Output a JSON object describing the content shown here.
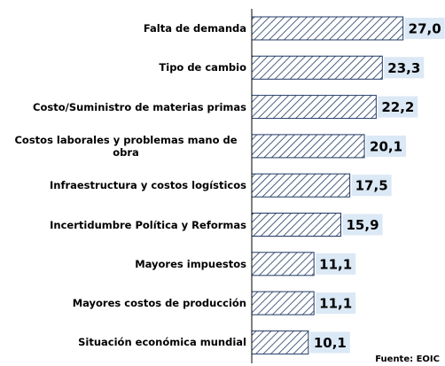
{
  "chart_data": {
    "type": "barh",
    "categories": [
      "Falta de demanda",
      "Tipo de cambio",
      "Costo/Suministro de materias primas",
      "Costos laborales y problemas mano de obra",
      "Infraestructura y costos logísticos",
      "Incertidumbre Política y Reformas",
      "Mayores impuestos",
      "Mayores costos de producción",
      "Situación económica mundial"
    ],
    "values": [
      27.0,
      23.3,
      22.2,
      20.1,
      17.5,
      15.9,
      11.1,
      11.1,
      10.1
    ],
    "value_labels": [
      "27,0",
      "23,3",
      "22,2",
      "20,1",
      "17,5",
      "15,9",
      "11,1",
      "11,1",
      "10,1"
    ],
    "color": "#1f3864",
    "xlim": [
      0,
      28
    ],
    "source": "Fuente: EOIC"
  }
}
